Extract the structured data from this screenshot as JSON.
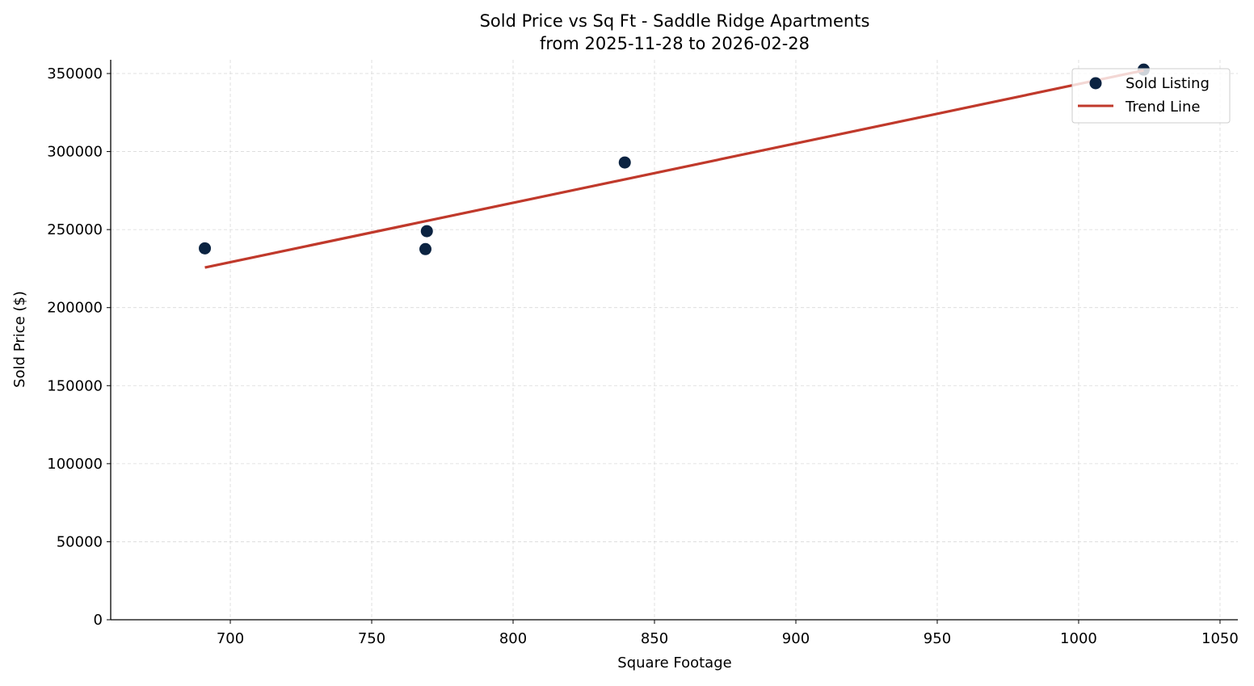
{
  "chart_data": {
    "type": "scatter",
    "title": "Sold Price vs Sq Ft - Saddle Ridge Apartments",
    "subtitle": "from 2025-11-28 to 2026-02-28",
    "xlabel": "Square Footage",
    "ylabel": "Sold Price ($)",
    "xlim": [
      657.7,
      1056.3
    ],
    "ylim": [
      0,
      358800
    ],
    "xticks": [
      700,
      750,
      800,
      850,
      900,
      950,
      1000,
      1050
    ],
    "yticks": [
      0,
      50000,
      100000,
      150000,
      200000,
      250000,
      300000,
      350000
    ],
    "grid": true,
    "legend_position": "top-right",
    "series": [
      {
        "name": "Sold Listing",
        "kind": "scatter",
        "color": "#0b2341",
        "points": [
          [
            691,
            238000
          ],
          [
            769.5,
            249000
          ],
          [
            769,
            237500
          ],
          [
            839.5,
            293000
          ],
          [
            1023,
            352500
          ]
        ]
      },
      {
        "name": "Trend Line",
        "kind": "line",
        "color": "#c0392b",
        "points": [
          [
            691,
            225700
          ],
          [
            1023,
            352000
          ]
        ]
      }
    ]
  }
}
